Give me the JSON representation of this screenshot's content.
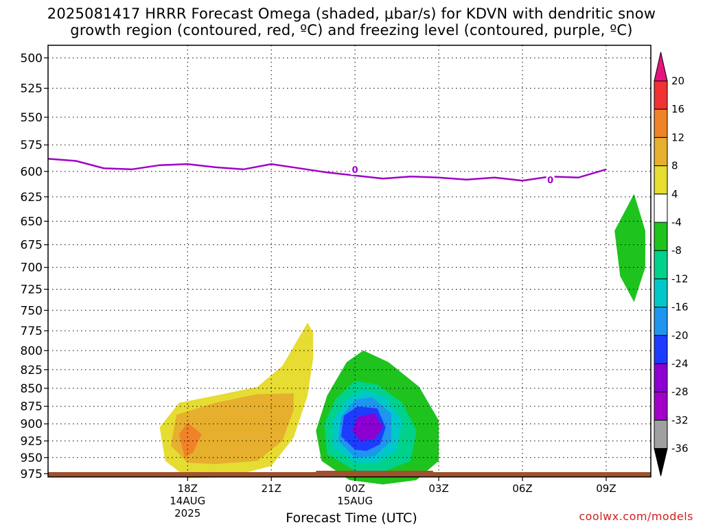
{
  "title": {
    "line1": "2025081417 HRRR Forecast Omega (shaded, μbar/s) for KDVN with dendritic snow",
    "line2": "growth region (contoured, red, ºC) and freezing level (contoured, purple, ºC)"
  },
  "credit": "coolwx.com/models",
  "chart_data": {
    "type": "time-height cross section",
    "title": "2025081417 HRRR Forecast Omega (shaded, μbar/s) for KDVN with dendritic snow growth region (contoured, red, ºC) and freezing level (contoured, purple, ºC)",
    "xlabel": "Forecast Time (UTC)",
    "ylabel": "",
    "x_range_hours_from_14Z": [
      -1,
      20.6
    ],
    "y_axis_inverted": true,
    "y_ticks": [
      500,
      525,
      550,
      575,
      600,
      625,
      650,
      675,
      700,
      725,
      750,
      775,
      800,
      825,
      850,
      875,
      900,
      925,
      950,
      975
    ],
    "ylim": [
      980,
      490
    ],
    "x_ticks": [
      {
        "hour": 4,
        "label": "18Z",
        "sub1": "14AUG",
        "sub2": "2025"
      },
      {
        "hour": 7,
        "label": "21Z",
        "sub1": "",
        "sub2": ""
      },
      {
        "hour": 10,
        "label": "00Z",
        "sub1": "15AUG",
        "sub2": ""
      },
      {
        "hour": 13,
        "label": "03Z",
        "sub1": "",
        "sub2": ""
      },
      {
        "hour": 16,
        "label": "06Z",
        "sub1": "",
        "sub2": ""
      },
      {
        "hour": 19,
        "label": "09Z",
        "sub1": "",
        "sub2": ""
      }
    ],
    "grid": true,
    "freezing_level": {
      "label": "0",
      "color": "#a000c8",
      "label_points": [
        [
          10.0,
          598
        ],
        [
          17.0,
          608
        ]
      ],
      "points": [
        [
          -1.0,
          588
        ],
        [
          0.0,
          590
        ],
        [
          1.0,
          597
        ],
        [
          2.0,
          598
        ],
        [
          3.0,
          594
        ],
        [
          4.0,
          593
        ],
        [
          5.0,
          596
        ],
        [
          6.0,
          598
        ],
        [
          7.0,
          593
        ],
        [
          8.0,
          597
        ],
        [
          9.0,
          601
        ],
        [
          10.0,
          604
        ],
        [
          11.0,
          607
        ],
        [
          12.0,
          605
        ],
        [
          13.0,
          606
        ],
        [
          14.0,
          608
        ],
        [
          15.0,
          606
        ],
        [
          16.0,
          609
        ],
        [
          17.0,
          605
        ],
        [
          18.0,
          606
        ],
        [
          18.5,
          602
        ],
        [
          19.0,
          598
        ]
      ]
    },
    "omega_regions": [
      {
        "level": 4,
        "color": "#e6dc32",
        "points": [
          [
            4.0,
            982
          ],
          [
            3.2,
            955
          ],
          [
            3.0,
            905
          ],
          [
            3.7,
            870
          ],
          [
            5.0,
            860
          ],
          [
            6.5,
            848
          ],
          [
            7.4,
            820
          ],
          [
            8.3,
            765
          ],
          [
            8.5,
            777
          ],
          [
            8.5,
            810
          ],
          [
            8.3,
            860
          ],
          [
            7.8,
            920
          ],
          [
            7.0,
            963
          ],
          [
            5.5,
            980
          ]
        ]
      },
      {
        "level": 8,
        "color": "#e6af2d",
        "points": [
          [
            4.0,
            958
          ],
          [
            3.4,
            932
          ],
          [
            3.6,
            887
          ],
          [
            5.0,
            870
          ],
          [
            6.5,
            858
          ],
          [
            7.8,
            857
          ],
          [
            7.8,
            880
          ],
          [
            7.4,
            925
          ],
          [
            6.5,
            955
          ],
          [
            5.0,
            960
          ]
        ]
      },
      {
        "level": 12,
        "color": "#f08228",
        "points": [
          [
            3.9,
            950
          ],
          [
            3.7,
            915
          ],
          [
            4.0,
            898
          ],
          [
            4.5,
            915
          ],
          [
            4.2,
            942
          ]
        ]
      },
      {
        "level": -4,
        "color": "#1ec31e",
        "points": [
          [
            9.8,
            985
          ],
          [
            8.8,
            955
          ],
          [
            8.6,
            910
          ],
          [
            9.0,
            860
          ],
          [
            9.7,
            815
          ],
          [
            10.3,
            800
          ],
          [
            11.2,
            815
          ],
          [
            12.3,
            848
          ],
          [
            13.0,
            895
          ],
          [
            13.0,
            955
          ],
          [
            12.2,
            985
          ],
          [
            11.0,
            992
          ]
        ]
      },
      {
        "level": -8,
        "color": "#00d28c",
        "points": [
          [
            10.0,
            970
          ],
          [
            9.0,
            945
          ],
          [
            8.9,
            900
          ],
          [
            9.3,
            865
          ],
          [
            10.0,
            840
          ],
          [
            10.8,
            845
          ],
          [
            11.7,
            870
          ],
          [
            12.2,
            910
          ],
          [
            12.0,
            955
          ],
          [
            11.0,
            972
          ]
        ]
      },
      {
        "level": -12,
        "color": "#00c8c8",
        "points": [
          [
            10.0,
            958
          ],
          [
            9.2,
            935
          ],
          [
            9.2,
            895
          ],
          [
            9.7,
            865
          ],
          [
            10.3,
            852
          ],
          [
            11.1,
            862
          ],
          [
            11.7,
            895
          ],
          [
            11.5,
            940
          ],
          [
            10.8,
            958
          ]
        ]
      },
      {
        "level": -16,
        "color": "#1e96f0",
        "points": [
          [
            10.0,
            950
          ],
          [
            9.4,
            925
          ],
          [
            9.5,
            890
          ],
          [
            10.0,
            866
          ],
          [
            10.6,
            862
          ],
          [
            11.3,
            885
          ],
          [
            11.3,
            925
          ],
          [
            10.7,
            948
          ]
        ]
      },
      {
        "level": -20,
        "color": "#1e3cff",
        "points": [
          [
            10.0,
            938
          ],
          [
            9.5,
            918
          ],
          [
            9.6,
            888
          ],
          [
            10.1,
            875
          ],
          [
            10.8,
            878
          ],
          [
            11.1,
            905
          ],
          [
            10.9,
            930
          ],
          [
            10.4,
            940
          ]
        ]
      },
      {
        "level": -24,
        "color": "#8c00d2",
        "points": [
          [
            10.2,
            925
          ],
          [
            9.9,
            910
          ],
          [
            10.1,
            890
          ],
          [
            10.7,
            885
          ],
          [
            11.0,
            905
          ],
          [
            10.7,
            922
          ]
        ]
      },
      {
        "level": -4,
        "color": "#1ec31e",
        "points": [
          [
            20.0,
            622
          ],
          [
            19.3,
            660
          ],
          [
            19.5,
            710
          ],
          [
            20.0,
            740
          ],
          [
            20.4,
            700
          ],
          [
            20.4,
            660
          ]
        ]
      }
    ],
    "surface": {
      "color": "#a0522d"
    },
    "colorbar": {
      "labels": [
        "20",
        "16",
        "12",
        "8",
        "4",
        "-4",
        "-8",
        "-12",
        "-16",
        "-20",
        "-24",
        "-28",
        "-32",
        "-36"
      ],
      "colors": [
        "#e6147d",
        "#f03232",
        "#f08228",
        "#e6af2d",
        "#e6dc32",
        "#ffffff",
        "#1ec31e",
        "#00d28c",
        "#00c8c8",
        "#1e96f0",
        "#1e3cff",
        "#8c00d2",
        "#a000c8",
        "#a0a0a0",
        "#000000"
      ]
    }
  }
}
